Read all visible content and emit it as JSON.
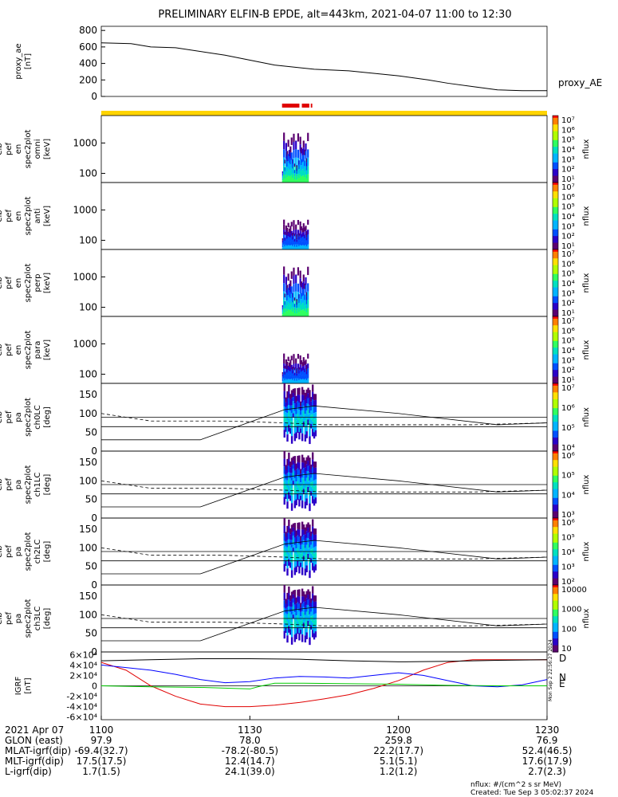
{
  "title": "PRELIMINARY ELFIN-B EPDE, alt=443km, 2021-04-07 11:00 to 12:30",
  "colors": {
    "red": "#e00000",
    "yellow": "#ffd400",
    "blue": "#0000ff",
    "green": "#00cc00",
    "grid": "#000000"
  },
  "chart_data": [
    {
      "panel": "proxy_ae",
      "type": "line",
      "ylabel": [
        "proxy_ae",
        "[nT]"
      ],
      "ylim": [
        0,
        850
      ],
      "yticks": [
        "0",
        "200",
        "400",
        "600",
        "800"
      ],
      "series": [
        {
          "name": "proxy_AE",
          "x": [
            0,
            6,
            10,
            15,
            25,
            35,
            43,
            50,
            55,
            60,
            66,
            70,
            75,
            80,
            85,
            90
          ],
          "y": [
            650,
            640,
            600,
            590,
            500,
            380,
            330,
            310,
            280,
            250,
            200,
            160,
            120,
            80,
            70,
            70
          ]
        }
      ]
    },
    {
      "panel": "orbit_bar",
      "type": "bar",
      "segments": [
        {
          "color": "yellow",
          "x": [
            0,
            90
          ]
        },
        {
          "color": "red",
          "x": [
            36.5,
            40
          ]
        },
        {
          "color": "red",
          "x": [
            40.5,
            42
          ]
        },
        {
          "color": "red",
          "x": [
            42.3,
            42.6
          ]
        }
      ]
    },
    {
      "panel": "en_omni",
      "type": "heatmap",
      "ylabel": [
        "elb",
        "pef",
        "en",
        "spec2plot",
        "omni",
        "[keV]"
      ],
      "yticks": [
        "100",
        "1000"
      ],
      "ylog": true,
      "ylim": [
        50,
        8000
      ],
      "cbar": {
        "label": "nflux",
        "ticks": [
          "10⁷",
          "10⁶",
          "10⁵",
          "10⁴",
          "10³",
          "10²",
          "10¹"
        ]
      }
    },
    {
      "panel": "en_anti",
      "type": "heatmap",
      "ylabel": [
        "elb",
        "pef",
        "en",
        "spec2plot",
        "anti",
        "[keV]"
      ],
      "yticks": [
        "100",
        "1000"
      ],
      "ylog": true,
      "ylim": [
        50,
        8000
      ],
      "cbar": {
        "label": "nflux",
        "ticks": [
          "10⁷",
          "10⁶",
          "10⁵",
          "10⁴",
          "10³",
          "10²",
          "10¹"
        ]
      }
    },
    {
      "panel": "en_perp",
      "type": "heatmap",
      "ylabel": [
        "elb",
        "pef",
        "en",
        "spec2plot",
        "perp",
        "[keV]"
      ],
      "yticks": [
        "100",
        "1000"
      ],
      "ylog": true,
      "ylim": [
        50,
        8000
      ],
      "cbar": {
        "label": "nflux",
        "ticks": [
          "10⁷",
          "10⁶",
          "10⁵",
          "10⁴",
          "10³",
          "10²",
          "10¹"
        ]
      }
    },
    {
      "panel": "en_para",
      "type": "heatmap",
      "ylabel": [
        "elb",
        "pef",
        "en",
        "spec2plot",
        "para",
        "[keV]"
      ],
      "yticks": [
        "100",
        "1000"
      ],
      "ylog": true,
      "ylim": [
        50,
        8000
      ],
      "cbar": {
        "label": "nflux",
        "ticks": [
          "10⁷",
          "10⁶",
          "10⁵",
          "10⁴",
          "10³",
          "10²",
          "10¹"
        ]
      }
    },
    {
      "panel": "pa_ch0LC",
      "type": "heatmap",
      "ylabel": [
        "elb",
        "pef",
        "pa",
        "spec2plot",
        "ch0LC",
        "[deg]"
      ],
      "yticks": [
        "0",
        "50",
        "100",
        "150"
      ],
      "ylim": [
        0,
        180
      ],
      "cbar": {
        "label": "nflux",
        "ticks": [
          "10⁷",
          "10⁶",
          "10⁵",
          "10⁴"
        ]
      },
      "lines": {
        "solid": {
          "x": [
            0,
            20,
            37,
            43,
            60,
            80,
            90
          ],
          "y": [
            30,
            30,
            110,
            120,
            100,
            70,
            75
          ]
        },
        "dashed": {
          "x": [
            0,
            10,
            25,
            37,
            45,
            60,
            75,
            90
          ],
          "y": [
            100,
            80,
            80,
            75,
            70,
            70,
            70,
            75
          ]
        },
        "h1": 90,
        "h2": 65
      }
    },
    {
      "panel": "pa_ch1LC",
      "type": "heatmap",
      "ylabel": [
        "elb",
        "pef",
        "pa",
        "spec2plot",
        "ch1LC",
        "[deg]"
      ],
      "yticks": [
        "0",
        "50",
        "100",
        "150"
      ],
      "ylim": [
        0,
        180
      ],
      "cbar": {
        "label": "nflux",
        "ticks": [
          "10⁶",
          "10⁵",
          "10⁴",
          "10³"
        ]
      },
      "lines": {
        "solid": {
          "x": [
            0,
            20,
            37,
            43,
            60,
            80,
            90
          ],
          "y": [
            30,
            30,
            110,
            120,
            100,
            70,
            75
          ]
        },
        "dashed": {
          "x": [
            0,
            10,
            25,
            37,
            45,
            60,
            75,
            90
          ],
          "y": [
            100,
            80,
            80,
            75,
            70,
            70,
            70,
            75
          ]
        },
        "h1": 90,
        "h2": 65
      }
    },
    {
      "panel": "pa_ch2LC",
      "type": "heatmap",
      "ylabel": [
        "elb",
        "pef",
        "pa",
        "spec2plot",
        "ch2LC",
        "[deg]"
      ],
      "yticks": [
        "0",
        "50",
        "100",
        "150"
      ],
      "ylim": [
        0,
        180
      ],
      "cbar": {
        "label": "nflux",
        "ticks": [
          "10⁶",
          "10⁵",
          "10⁴",
          "10³",
          "10²"
        ]
      },
      "lines": {
        "solid": {
          "x": [
            0,
            20,
            37,
            43,
            60,
            80,
            90
          ],
          "y": [
            30,
            30,
            110,
            120,
            100,
            70,
            75
          ]
        },
        "dashed": {
          "x": [
            0,
            10,
            25,
            37,
            45,
            60,
            75,
            90
          ],
          "y": [
            100,
            80,
            80,
            75,
            70,
            70,
            70,
            75
          ]
        },
        "h1": 90,
        "h2": 65
      }
    },
    {
      "panel": "pa_ch3LC",
      "type": "heatmap",
      "ylabel": [
        "elb",
        "pef",
        "pa",
        "spec2plot",
        "ch3LC",
        "[deg]"
      ],
      "yticks": [
        "0",
        "50",
        "100",
        "150"
      ],
      "ylim": [
        0,
        180
      ],
      "cbar": {
        "label": "nflux",
        "ticks": [
          "10000",
          "1000",
          "100",
          "10"
        ]
      },
      "lines": {
        "solid": {
          "x": [
            0,
            20,
            37,
            43,
            60,
            80,
            90
          ],
          "y": [
            30,
            30,
            110,
            120,
            100,
            70,
            75
          ]
        },
        "dashed": {
          "x": [
            0,
            10,
            25,
            37,
            45,
            60,
            75,
            90
          ],
          "y": [
            100,
            80,
            80,
            75,
            70,
            70,
            70,
            75
          ]
        },
        "h1": 90,
        "h2": 65
      }
    },
    {
      "panel": "igrf",
      "type": "line",
      "ylabel": [
        "IGRF",
        "[nT]"
      ],
      "ylim": [
        -65000,
        65000
      ],
      "yticks": [
        "6×10⁴",
        "4×10⁴",
        "2×10⁴",
        "0",
        "-2×10⁴",
        "-4×10⁴",
        "-6×10⁴"
      ],
      "legend": [
        "D",
        "N",
        "E"
      ],
      "side_text": "Mon Sep 2 22:56:27 2024",
      "series": [
        {
          "name": "D",
          "color": "red",
          "x": [
            0,
            5,
            10,
            15,
            20,
            25,
            30,
            35,
            40,
            45,
            50,
            55,
            60,
            65,
            70,
            75,
            80,
            85,
            90
          ],
          "y": [
            45000,
            30000,
            0,
            -20000,
            -35000,
            -40000,
            -40000,
            -37000,
            -32000,
            -25000,
            -17000,
            -5000,
            10000,
            30000,
            45000,
            50000,
            50000,
            50000,
            50000
          ]
        },
        {
          "name": "N",
          "color": "blue",
          "x": [
            0,
            5,
            10,
            15,
            20,
            25,
            30,
            35,
            40,
            45,
            50,
            55,
            60,
            65,
            70,
            75,
            80,
            85,
            90
          ],
          "y": [
            40000,
            35000,
            30000,
            22000,
            12000,
            6000,
            8000,
            15000,
            18000,
            17000,
            15000,
            20000,
            25000,
            20000,
            10000,
            0,
            -2000,
            2000,
            12000
          ]
        },
        {
          "name": "E",
          "color": "green",
          "x": [
            0,
            10,
            20,
            30,
            32,
            35,
            40,
            50,
            60,
            70,
            80,
            90
          ],
          "y": [
            0,
            -2000,
            -3000,
            -6000,
            -1000,
            5000,
            5000,
            4000,
            3000,
            1000,
            0,
            0
          ]
        },
        {
          "name": "total",
          "color": "black",
          "x": [
            0,
            10,
            20,
            30,
            40,
            50,
            60,
            70,
            80,
            90
          ],
          "y": [
            48000,
            50000,
            52000,
            52000,
            51000,
            48000,
            46000,
            47000,
            49000,
            50000
          ]
        }
      ]
    }
  ],
  "xaxis": {
    "rows": [
      {
        "label": "2021 Apr 07",
        "vals": [
          "1100",
          "1130",
          "1200",
          "1230"
        ]
      },
      {
        "label": "GLON (east)",
        "vals": [
          "97.9",
          "78.0",
          "259.8",
          "76.9"
        ]
      },
      {
        "label": "MLAT-igrf(dip)",
        "vals": [
          "-69.4(32.7)",
          "-78.2(-80.5)",
          "22.2(17.7)",
          "52.4(46.5)"
        ]
      },
      {
        "label": "MLT-igrf(dip)",
        "vals": [
          "17.5(17.5)",
          "12.4(14.7)",
          "5.1(5.1)",
          "17.6(17.9)"
        ]
      },
      {
        "label": "L-igrf(dip)",
        "vals": [
          "1.7(1.5)",
          "24.1(39.0)",
          "1.2(1.2)",
          "2.7(2.3)"
        ]
      }
    ]
  },
  "footer": {
    "units": "nflux: #/(cm^2 s sr MeV)",
    "created": "Created: Tue Sep  3 05:02:37 2024"
  }
}
